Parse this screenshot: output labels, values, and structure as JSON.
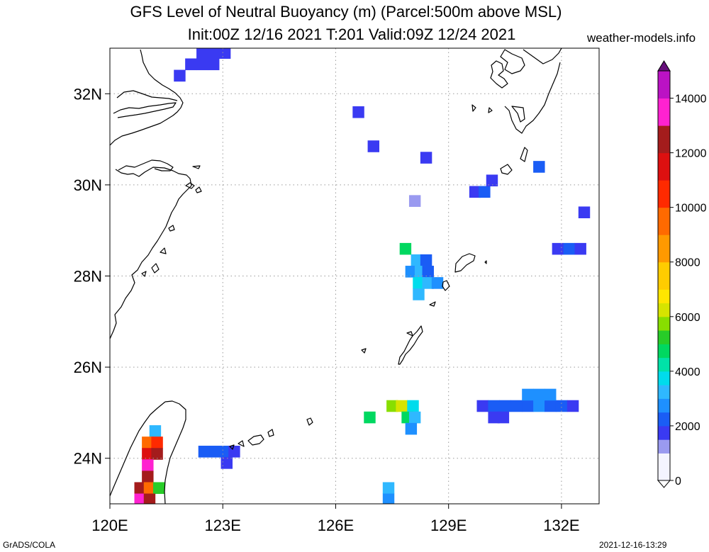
{
  "header": {
    "title_line1": "GFS Level of Neutral Buoyancy (m) (Parcel:500m above MSL)",
    "title_line2": "Init:00Z 12/16 2021 T:201 Valid:09Z 12/24 2021",
    "site": "weather-models.info"
  },
  "footer": {
    "left": "GrADS/COLA",
    "right": "2021-12-16-13:29"
  },
  "map": {
    "lon_range": [
      120,
      133
    ],
    "lat_range": [
      23,
      33
    ],
    "lon_ticks": [
      {
        "value": 120,
        "label": "120E"
      },
      {
        "value": 123,
        "label": "123E"
      },
      {
        "value": 126,
        "label": "126E"
      },
      {
        "value": 129,
        "label": "129E"
      },
      {
        "value": 132,
        "label": "132E"
      }
    ],
    "lat_ticks": [
      {
        "value": 24,
        "label": "24N"
      },
      {
        "value": 26,
        "label": "26N"
      },
      {
        "value": 28,
        "label": "28N"
      },
      {
        "value": 30,
        "label": "30N"
      },
      {
        "value": 32,
        "label": "32N"
      }
    ],
    "grid": "dotted",
    "colorbar": {
      "labels": [
        "0",
        "2000",
        "4000",
        "6000",
        "8000",
        "10000",
        "12000",
        "14000"
      ],
      "stops": [
        {
          "v": 0,
          "c": "#f4f4ff"
        },
        {
          "v": 1000,
          "c": "#9a9af0"
        },
        {
          "v": 1500,
          "c": "#3a3af2"
        },
        {
          "v": 2000,
          "c": "#1a5df5"
        },
        {
          "v": 2500,
          "c": "#1e90ff"
        },
        {
          "v": 3000,
          "c": "#2fb8ff"
        },
        {
          "v": 3500,
          "c": "#00dcec"
        },
        {
          "v": 4000,
          "c": "#00e2a8"
        },
        {
          "v": 4500,
          "c": "#00d860"
        },
        {
          "v": 5000,
          "c": "#28cc28"
        },
        {
          "v": 5500,
          "c": "#88de00"
        },
        {
          "v": 6000,
          "c": "#d6e400"
        },
        {
          "v": 6500,
          "c": "#ffe600"
        },
        {
          "v": 7000,
          "c": "#ffcc00"
        },
        {
          "v": 8000,
          "c": "#ff9900"
        },
        {
          "v": 9000,
          "c": "#ff6a00"
        },
        {
          "v": 10000,
          "c": "#ff2a00"
        },
        {
          "v": 11000,
          "c": "#dd1010"
        },
        {
          "v": 12000,
          "c": "#a41c1c"
        },
        {
          "v": 13000,
          "c": "#ff22d0"
        },
        {
          "v": 14000,
          "c": "#bb12c4"
        },
        {
          "v": 15000,
          "c": "#66107a"
        }
      ]
    },
    "cells": [
      {
        "lon": 122.15,
        "lat": 32.65,
        "value": 1600
      },
      {
        "lon": 122.45,
        "lat": 32.65,
        "value": 1600
      },
      {
        "lon": 122.75,
        "lat": 32.65,
        "value": 1600
      },
      {
        "lon": 122.45,
        "lat": 32.9,
        "value": 1600
      },
      {
        "lon": 122.75,
        "lat": 32.9,
        "value": 1600
      },
      {
        "lon": 123.05,
        "lat": 32.9,
        "value": 1600
      },
      {
        "lon": 121.85,
        "lat": 32.4,
        "value": 1600
      },
      {
        "lon": 126.6,
        "lat": 31.6,
        "value": 1700
      },
      {
        "lon": 127.0,
        "lat": 30.85,
        "value": 1700
      },
      {
        "lon": 128.4,
        "lat": 30.6,
        "value": 1700
      },
      {
        "lon": 128.1,
        "lat": 29.65,
        "value": 1200
      },
      {
        "lon": 129.7,
        "lat": 29.85,
        "value": 1800
      },
      {
        "lon": 129.95,
        "lat": 29.85,
        "value": 2300
      },
      {
        "lon": 130.15,
        "lat": 30.1,
        "value": 1800
      },
      {
        "lon": 131.4,
        "lat": 30.4,
        "value": 2300
      },
      {
        "lon": 132.6,
        "lat": 29.4,
        "value": 1700
      },
      {
        "lon": 131.9,
        "lat": 28.6,
        "value": 1700
      },
      {
        "lon": 132.2,
        "lat": 28.6,
        "value": 2300
      },
      {
        "lon": 132.5,
        "lat": 28.6,
        "value": 1800
      },
      {
        "lon": 127.85,
        "lat": 28.6,
        "value": 4800
      },
      {
        "lon": 128.15,
        "lat": 28.35,
        "value": 3000
      },
      {
        "lon": 128.4,
        "lat": 28.35,
        "value": 2200
      },
      {
        "lon": 128.0,
        "lat": 28.1,
        "value": 2600
      },
      {
        "lon": 128.25,
        "lat": 28.1,
        "value": 3300
      },
      {
        "lon": 128.45,
        "lat": 28.1,
        "value": 2400
      },
      {
        "lon": 128.2,
        "lat": 27.85,
        "value": 3500
      },
      {
        "lon": 128.45,
        "lat": 27.85,
        "value": 3000
      },
      {
        "lon": 128.7,
        "lat": 27.85,
        "value": 2600
      },
      {
        "lon": 128.2,
        "lat": 27.6,
        "value": 3200
      },
      {
        "lon": 127.5,
        "lat": 25.15,
        "value": 5500
      },
      {
        "lon": 127.75,
        "lat": 25.15,
        "value": 6300
      },
      {
        "lon": 128.05,
        "lat": 25.15,
        "value": 3800
      },
      {
        "lon": 127.9,
        "lat": 24.9,
        "value": 4600
      },
      {
        "lon": 128.1,
        "lat": 24.9,
        "value": 3400
      },
      {
        "lon": 128.0,
        "lat": 24.65,
        "value": 2900
      },
      {
        "lon": 126.9,
        "lat": 24.9,
        "value": 4800
      },
      {
        "lon": 127.4,
        "lat": 23.35,
        "value": 3000
      },
      {
        "lon": 127.4,
        "lat": 23.1,
        "value": 2900
      },
      {
        "lon": 122.5,
        "lat": 24.15,
        "value": 2400
      },
      {
        "lon": 122.8,
        "lat": 24.15,
        "value": 2200
      },
      {
        "lon": 123.1,
        "lat": 24.15,
        "value": 2000
      },
      {
        "lon": 123.3,
        "lat": 24.15,
        "value": 1800
      },
      {
        "lon": 123.1,
        "lat": 23.9,
        "value": 1800
      },
      {
        "lon": 129.9,
        "lat": 25.15,
        "value": 1700
      },
      {
        "lon": 130.2,
        "lat": 25.15,
        "value": 2100
      },
      {
        "lon": 130.5,
        "lat": 25.15,
        "value": 2200
      },
      {
        "lon": 130.8,
        "lat": 25.15,
        "value": 2200
      },
      {
        "lon": 131.1,
        "lat": 25.15,
        "value": 2400
      },
      {
        "lon": 131.4,
        "lat": 25.15,
        "value": 2500
      },
      {
        "lon": 131.7,
        "lat": 25.15,
        "value": 2300
      },
      {
        "lon": 132.0,
        "lat": 25.15,
        "value": 2000
      },
      {
        "lon": 132.3,
        "lat": 25.15,
        "value": 1800
      },
      {
        "lon": 131.1,
        "lat": 25.4,
        "value": 2600
      },
      {
        "lon": 131.4,
        "lat": 25.4,
        "value": 2700
      },
      {
        "lon": 131.7,
        "lat": 25.4,
        "value": 2600
      },
      {
        "lon": 130.2,
        "lat": 24.9,
        "value": 1700
      },
      {
        "lon": 130.45,
        "lat": 24.9,
        "value": 1600
      },
      {
        "lon": 121.2,
        "lat": 24.6,
        "value": 3300
      },
      {
        "lon": 121.0,
        "lat": 24.35,
        "value": 9000
      },
      {
        "lon": 121.25,
        "lat": 24.35,
        "value": 10600
      },
      {
        "lon": 121.0,
        "lat": 24.1,
        "value": 11500
      },
      {
        "lon": 121.25,
        "lat": 24.1,
        "value": 12800
      },
      {
        "lon": 121.0,
        "lat": 23.85,
        "value": 13000
      },
      {
        "lon": 121.0,
        "lat": 23.6,
        "value": 12500
      },
      {
        "lon": 120.8,
        "lat": 23.35,
        "value": 12200
      },
      {
        "lon": 121.05,
        "lat": 23.35,
        "value": 9200
      },
      {
        "lon": 121.3,
        "lat": 23.35,
        "value": 5200
      },
      {
        "lon": 120.8,
        "lat": 23.1,
        "value": 13500
      },
      {
        "lon": 121.05,
        "lat": 23.1,
        "value": 12000
      }
    ]
  }
}
